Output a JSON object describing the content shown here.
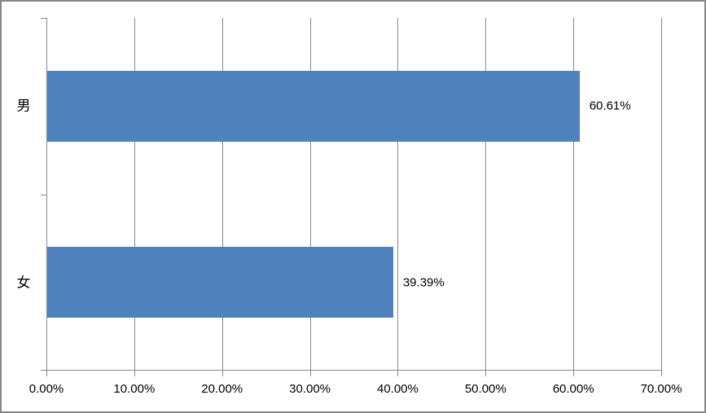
{
  "chart_data": {
    "type": "bar",
    "orientation": "horizontal",
    "title": "",
    "xlabel": "",
    "ylabel": "",
    "categories": [
      "男",
      "女"
    ],
    "values": [
      60.61,
      39.39
    ],
    "data_labels": [
      "60.61%",
      "39.39%"
    ],
    "x_ticks": [
      "0.00%",
      "10.00%",
      "20.00%",
      "30.00%",
      "40.00%",
      "50.00%",
      "60.00%",
      "70.00%"
    ],
    "x_tick_values": [
      0,
      10,
      20,
      30,
      40,
      50,
      60,
      70
    ],
    "xlim": [
      0,
      70
    ],
    "grid": "vertical-major-only",
    "legend": "none",
    "colors": {
      "bar": "#4F81BD",
      "gridline": "#898989",
      "axis": "#898989",
      "text": "#000000",
      "chart_border": "#868686",
      "background": "#FFFFFF"
    }
  }
}
